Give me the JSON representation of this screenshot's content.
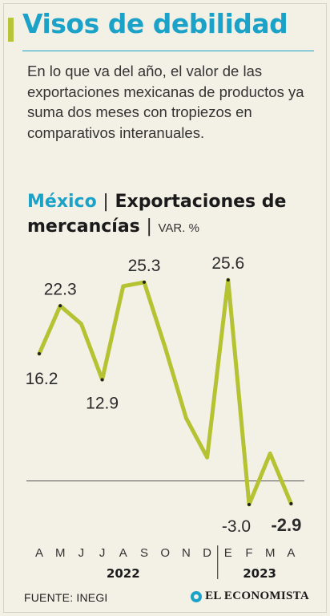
{
  "header": {
    "title": "Visos de debilidad",
    "subtitle": "En lo que va del año, el valor de las exportaciones mexicanas de productos ya suma dos meses con tropiezos en comparativos interanuales."
  },
  "chart_heading": {
    "country": "México",
    "separator": "|",
    "title": "Exportaciones de mercancías",
    "unit": "VAR. %"
  },
  "chart_data": {
    "type": "line",
    "x": [
      "A",
      "M",
      "J",
      "J",
      "A",
      "S",
      "O",
      "N",
      "D",
      "E",
      "F",
      "M",
      "A"
    ],
    "year_groups": [
      {
        "label": "2022",
        "months": [
          "A",
          "M",
          "J",
          "J",
          "A",
          "S",
          "O",
          "N",
          "D"
        ]
      },
      {
        "label": "2023",
        "months": [
          "E",
          "F",
          "M",
          "A"
        ]
      }
    ],
    "values": [
      16.2,
      22.3,
      20.0,
      12.9,
      24.8,
      25.3,
      17.0,
      8.0,
      3.0,
      25.6,
      -3.0,
      3.5,
      -2.9
    ],
    "labels": [
      "16.2",
      "22.3",
      null,
      "12.9",
      null,
      "25.3",
      null,
      null,
      null,
      "25.6",
      "-3.0",
      null,
      "-2.9"
    ],
    "highlight_last": true,
    "ylim": [
      -5,
      30
    ],
    "zero_line": true,
    "line_color": "#b5c232",
    "zero_line_color": "#555555"
  },
  "footer": {
    "source": "FUENTE: INEGI",
    "brand": "EL ECONOMISTA"
  },
  "colors": {
    "accent_blue": "#1ba2c8",
    "accent_green": "#b8c43a",
    "background": "#f3f0e6"
  }
}
